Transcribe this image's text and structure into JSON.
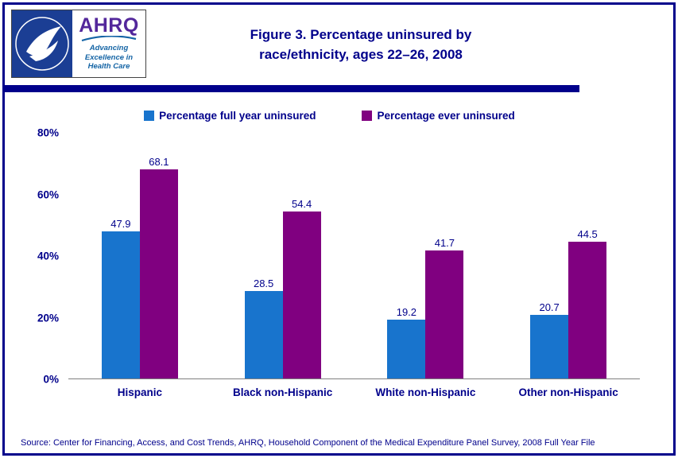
{
  "logo": {
    "ahrq_text": "AHRQ",
    "tagline1": "Advancing",
    "tagline2": "Excellence in",
    "tagline3": "Health Care"
  },
  "title": {
    "line1": "Figure 3. Percentage uninsured by",
    "line2": "race/ethnicity, ages 22–26, 2008"
  },
  "chart_data": {
    "type": "bar",
    "title": "Figure 3. Percentage uninsured by race/ethnicity, ages 22–26, 2008",
    "categories": [
      "Hispanic",
      "Black non-Hispanic",
      "White non-Hispanic",
      "Other non-Hispanic"
    ],
    "series": [
      {
        "name": "Percentage full year uninsured",
        "color": "#1874CD",
        "values": [
          47.9,
          28.5,
          19.2,
          20.7
        ]
      },
      {
        "name": "Percentage ever uninsured",
        "color": "#800080",
        "values": [
          68.1,
          54.4,
          41.7,
          44.5
        ]
      }
    ],
    "ylim": [
      0,
      80
    ],
    "yticks": [
      "0%",
      "20%",
      "40%",
      "60%",
      "80%"
    ],
    "grid": false,
    "legend_position": "top"
  },
  "colors": {
    "navy_text": "#00008B",
    "blue_bar": "#1874CD",
    "purple_bar": "#800080",
    "hhs_seal_blue": "#1B3E94",
    "ahrq_purple": "#53279B",
    "tagline_blue": "#1464A5"
  },
  "source": "Source: Center for Financing, Access, and Cost Trends, AHRQ, Household Component of the Medical Expenditure Panel Survey, 2008 Full Year File"
}
